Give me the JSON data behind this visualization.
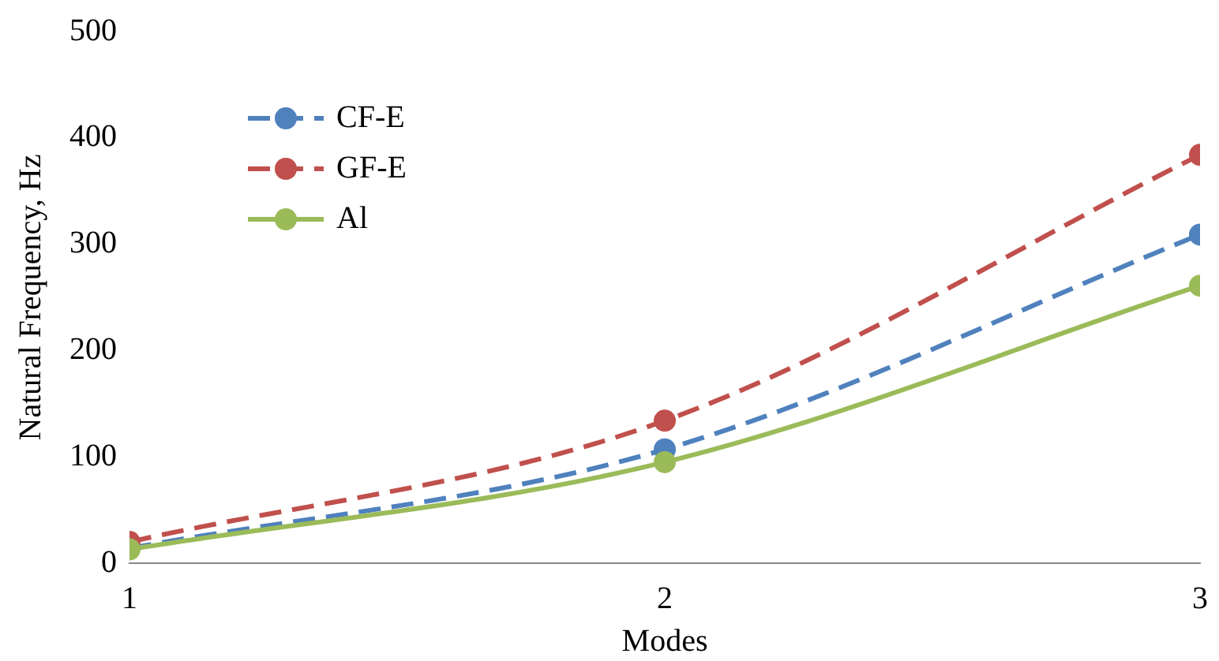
{
  "chart_data": {
    "type": "line",
    "xlabel": "Modes",
    "ylabel": "Natural Frequency, Hz",
    "x": [
      1,
      2,
      3
    ],
    "series": [
      {
        "name": "CF-E",
        "color": "#4f81bd",
        "values": [
          14,
          107,
          309
        ],
        "line_style": "dashed"
      },
      {
        "name": "GF-E",
        "color": "#c0504d",
        "values": [
          20,
          134,
          384
        ],
        "line_style": "dashed"
      },
      {
        "name": "Al",
        "color": "#9bbb59",
        "values": [
          13,
          95,
          261
        ],
        "line_style": "solid"
      }
    ],
    "xlim": [
      1,
      3
    ],
    "xticks": [
      1,
      2,
      3
    ],
    "ylim": [
      0,
      500
    ],
    "yticks": [
      0,
      100,
      200,
      300,
      400,
      500
    ],
    "grid": false,
    "legend": "top left",
    "marker": "circle"
  }
}
